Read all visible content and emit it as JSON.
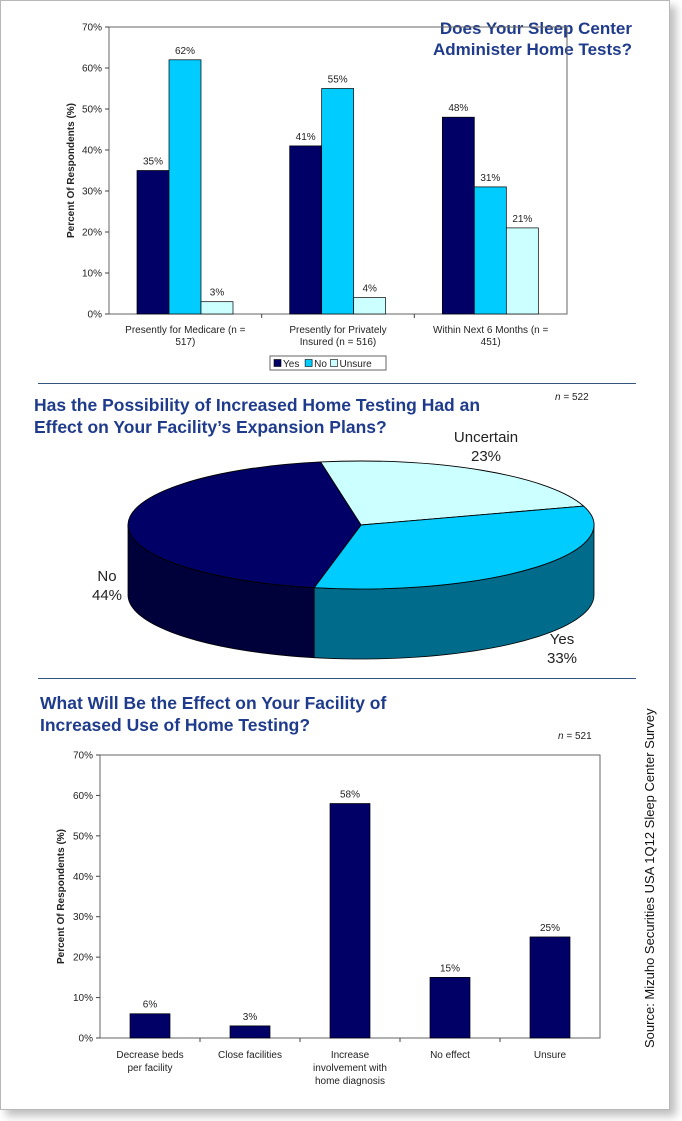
{
  "source": "Source: Mizuho Securities USA 1Q12 Sleep Center Survey",
  "chart_data": [
    {
      "type": "bar",
      "title": "Does Your Sleep Center Administer Home Tests?",
      "ylabel": "Percent Of Respondents (%)",
      "ylim": [
        0,
        70
      ],
      "yticks": [
        "0%",
        "10%",
        "20%",
        "30%",
        "40%",
        "50%",
        "60%",
        "70%"
      ],
      "categories": [
        "Presently for Medicare (n = 517)",
        "Presently for Privately Insured (n = 516)",
        "Within Next 6 Months (n = 451)"
      ],
      "category_lines": [
        [
          "Presently for Medicare (n =",
          "517)"
        ],
        [
          "Presently for Privately",
          "Insured (n = 516)"
        ],
        [
          "Within Next 6 Months (n =",
          "451)"
        ]
      ],
      "series": [
        {
          "name": "Yes",
          "color": "#000066",
          "values": [
            35,
            41,
            48
          ],
          "labels": [
            "35%",
            "41%",
            "48%"
          ]
        },
        {
          "name": "No",
          "color": "#00ccff",
          "values": [
            62,
            55,
            31
          ],
          "labels": [
            "62%",
            "55%",
            "31%"
          ]
        },
        {
          "name": "Unsure",
          "color": "#ccffff",
          "values": [
            3,
            4,
            21
          ],
          "labels": [
            "3%",
            "4%",
            "21%"
          ]
        }
      ],
      "legend": "bottom",
      "grid": false
    },
    {
      "type": "pie",
      "title": "Has the Possibility of Increased Home Testing Had an Effect on Your Facility's Expansion Plans?",
      "title_lines": [
        "Has the Possibility of Increased Home Testing Had an",
        "Effect on Your Facility’s Expansion Plans?"
      ],
      "n_label": "= 522",
      "slices": [
        {
          "name": "Uncertain",
          "value": 23,
          "label": "23%",
          "color": "#ccffff"
        },
        {
          "name": "Yes",
          "value": 33,
          "label": "33%",
          "color": "#00ccff"
        },
        {
          "name": "No",
          "value": 44,
          "label": "44%",
          "color": "#000066"
        }
      ]
    },
    {
      "type": "bar",
      "title": "What Will Be the Effect on Your Facility of Increased Use of Home Testing?",
      "title_lines": [
        "What Will Be the Effect on Your Facility of",
        "Increased Use of Home Testing?"
      ],
      "n_label": "= 521",
      "ylabel": "Percent Of Respondents (%)",
      "ylim": [
        0,
        70
      ],
      "yticks": [
        "0%",
        "10%",
        "20%",
        "30%",
        "40%",
        "50%",
        "60%",
        "70%"
      ],
      "categories": [
        "Decrease beds per facility",
        "Close facilities",
        "Increase involvement with home diagnosis",
        "No effect",
        "Unsure"
      ],
      "category_lines": [
        [
          "Decrease beds",
          "per facility"
        ],
        [
          "Close facilities"
        ],
        [
          "Increase",
          "involvement with",
          "home diagnosis"
        ],
        [
          "No effect"
        ],
        [
          "Unsure"
        ]
      ],
      "values": [
        6,
        3,
        58,
        15,
        25
      ],
      "labels": [
        "6%",
        "3%",
        "58%",
        "15%",
        "25%"
      ],
      "color": "#000066",
      "grid": false
    }
  ]
}
